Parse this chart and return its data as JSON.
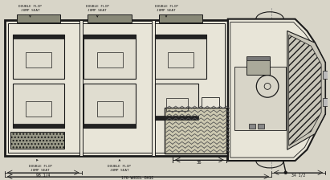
{
  "bg_color": "#d8d5c8",
  "line_color": "#1a1a1a",
  "body_fill": "#e8e5d8",
  "dim_bottom": [
    "98 1/4",
    "176 WHEEL BASE",
    "34 1/2"
  ],
  "dim_36": "36",
  "labels_top": [
    "DOUBLE FLIP\nJUMP SEAT",
    "DOUBLE FLIP\nJUMP SEAT",
    "DOUBLE FLIP\nJUMP SEAT"
  ],
  "labels_bottom": [
    "DOUBLE FLIP\nJUMP SEAT",
    "DOUBLE FLIP\nJUMP SEAT"
  ]
}
